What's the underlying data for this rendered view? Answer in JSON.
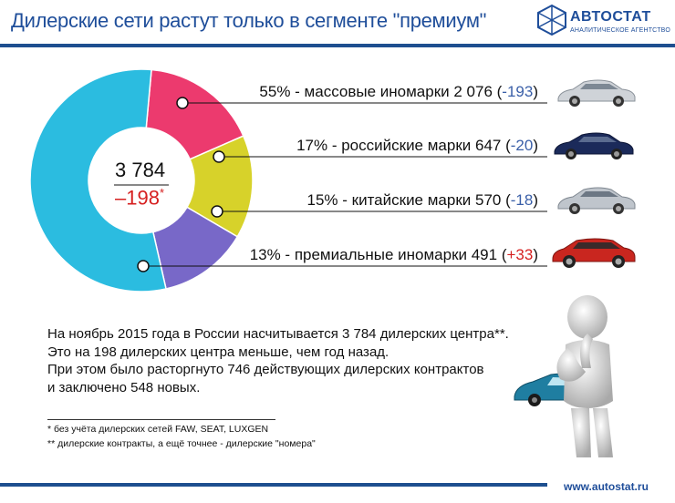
{
  "title": "Дилерские сети растут только в сегменте \"премиум\"",
  "logo": {
    "name": "АВТОСТАТ",
    "sub": "АНАЛИТИЧЕСКОЕ АГЕНТСТВО"
  },
  "chart_data": {
    "type": "pie",
    "donut": true,
    "center_total": "3 784",
    "center_change": "–198",
    "center_change_mark": "*",
    "slices": [
      {
        "label": "массовые иномарки",
        "percent": 55,
        "value": 2076,
        "change": -193,
        "color": "#2bbce0"
      },
      {
        "label": "российские марки",
        "percent": 17,
        "value": 647,
        "change": -20,
        "color": "#ec3a6e"
      },
      {
        "label": "китайские марки",
        "percent": 15,
        "value": 570,
        "change": -18,
        "color": "#d7d22a"
      },
      {
        "label": "премиальные иномарки",
        "percent": 13,
        "value": 491,
        "change": 33,
        "color": "#7868c8"
      }
    ]
  },
  "legend": [
    {
      "main": "55% - массовые иномарки 2 076 (",
      "chg": "-193",
      "close": ")"
    },
    {
      "main": "17% - российские марки 647 (",
      "chg": "-20",
      "close": ")"
    },
    {
      "main": "15% - китайские марки 570 (",
      "chg": "-18",
      "close": ")"
    },
    {
      "main": "13% - премиальные иномарки 491 (",
      "chg": "+33",
      "close": ")"
    }
  ],
  "body": {
    "line1": "На ноябрь 2015 года в России насчитывается 3 784 дилерских центра**.",
    "line2": "Это на 198 дилерских центра меньше, чем год назад.",
    "line3": "При  этом было расторгнуто 746 действующих дилерских контрактов",
    "line4": "и заключено 548 новых."
  },
  "footnotes": {
    "f1": "*   без учёта дилерских сетей FAW, SEAT, LUXGEN",
    "f2": "** дилерские контракты, а ещё точнее - дилерские \"номера\""
  },
  "url": "www.autostat.ru",
  "cars": [
    {
      "name": "silver-sedan",
      "color": "#cfd3d8"
    },
    {
      "name": "navy-sedan",
      "color": "#1b2a5a"
    },
    {
      "name": "silver-sedan-2",
      "color": "#bfc5cc"
    },
    {
      "name": "red-suv",
      "color": "#c9261f"
    }
  ]
}
